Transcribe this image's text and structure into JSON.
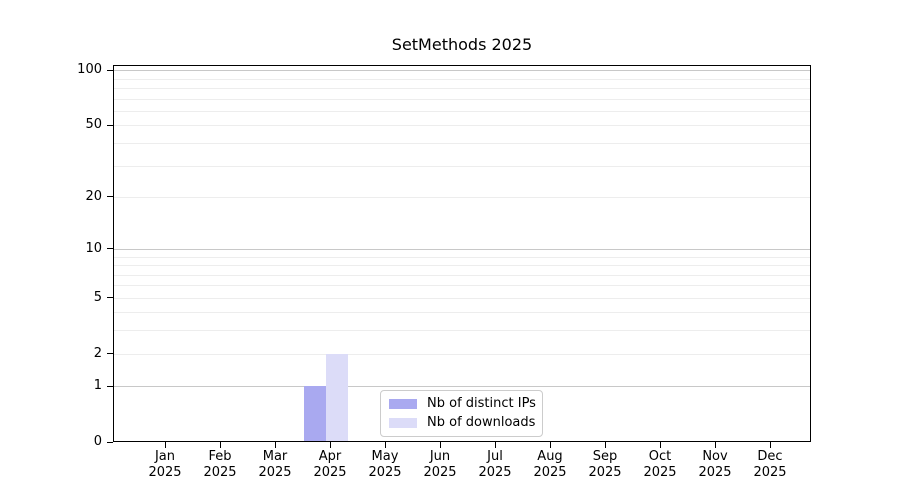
{
  "title": "SetMethods 2025",
  "legend": {
    "position": "lower center",
    "items": [
      {
        "label": "Nb of distinct IPs",
        "color": "#a9a9f0"
      },
      {
        "label": "Nb of downloads",
        "color": "#dcdcf8"
      }
    ]
  },
  "chart_data": {
    "type": "bar",
    "title": "SetMethods 2025",
    "categories": [
      "Jan 2025",
      "Feb 2025",
      "Mar 2025",
      "Apr 2025",
      "May 2025",
      "Jun 2025",
      "Jul 2025",
      "Aug 2025",
      "Sep 2025",
      "Oct 2025",
      "Nov 2025",
      "Dec 2025"
    ],
    "series": [
      {
        "name": "Nb of distinct IPs",
        "color": "#a9a9f0",
        "values": [
          0,
          0,
          0,
          1,
          0,
          0,
          0,
          0,
          0,
          0,
          0,
          0
        ]
      },
      {
        "name": "Nb of downloads",
        "color": "#dcdcf8",
        "values": [
          0,
          0,
          0,
          2,
          0,
          0,
          0,
          0,
          0,
          0,
          0,
          0
        ]
      }
    ],
    "xlabel": "",
    "ylabel": "",
    "y_scale": "log1p",
    "ylim": [
      0,
      107
    ],
    "y_ticks": [
      0,
      1,
      2,
      5,
      10,
      20,
      50,
      100
    ],
    "y_gridlines_major": [
      1,
      10,
      100
    ],
    "y_gridlines_minor": [
      2,
      3,
      4,
      5,
      6,
      7,
      8,
      9,
      20,
      30,
      40,
      50,
      60,
      70,
      80,
      90
    ],
    "grid": true,
    "legend_position": "lower center"
  }
}
